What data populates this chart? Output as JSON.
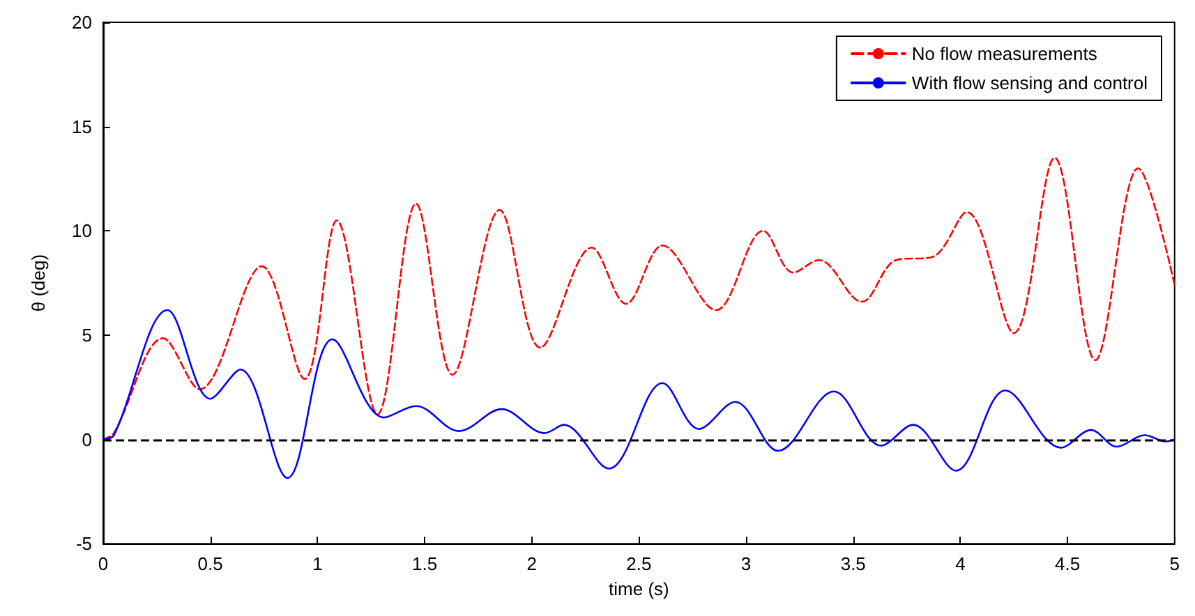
{
  "chart_data": {
    "type": "line",
    "xlabel": "time (s)",
    "ylabel": "θ (deg)",
    "xlim": [
      0,
      5
    ],
    "ylim": [
      -5,
      20
    ],
    "xticks": [
      0,
      0.5,
      1,
      1.5,
      2,
      2.5,
      3,
      3.5,
      4,
      4.5,
      5
    ],
    "yticks": [
      -5,
      0,
      5,
      10,
      15,
      20
    ],
    "grid": false,
    "legend": "top right",
    "marker": "none",
    "ref_lines": [
      {
        "axis": "y",
        "value": 0,
        "color": "#000000",
        "line_style": "dashed"
      }
    ],
    "series": [
      {
        "name": "No flow measurements",
        "color": "#ff0000",
        "line_style": "dashed",
        "x": [
          0,
          0.05,
          0.28,
          0.45,
          0.74,
          0.94,
          1.09,
          1.28,
          1.46,
          1.63,
          1.85,
          2.04,
          2.28,
          2.44,
          2.61,
          2.86,
          3.08,
          3.22,
          3.34,
          3.54,
          3.7,
          3.87,
          4.03,
          4.25,
          4.44,
          4.63,
          4.83,
          5
        ],
        "values": [
          0,
          0.3,
          4.85,
          2.4,
          8.3,
          2.9,
          10.5,
          1.2,
          11.3,
          3.1,
          11,
          4.4,
          9.2,
          6.5,
          9.3,
          6.2,
          10,
          8,
          8.6,
          6.6,
          8.6,
          8.75,
          10.9,
          5.1,
          13.5,
          3.8,
          13,
          7.4
        ]
      },
      {
        "name": "With flow sensing and control",
        "color": "#0000ff",
        "line_style": "solid",
        "x": [
          0,
          0.05,
          0.3,
          0.5,
          0.64,
          0.86,
          1.07,
          1.31,
          1.46,
          1.66,
          1.86,
          2.06,
          2.15,
          2.36,
          2.61,
          2.78,
          2.95,
          3.15,
          3.41,
          3.63,
          3.78,
          3.98,
          4.21,
          4.47,
          4.61,
          4.73,
          4.86,
          4.96,
          5
        ],
        "values": [
          0,
          0.2,
          6.2,
          1.95,
          3.35,
          -1.85,
          4.8,
          1.05,
          1.6,
          0.4,
          1.45,
          0.3,
          0.7,
          -1.4,
          2.7,
          0.5,
          1.8,
          -0.55,
          2.3,
          -0.3,
          0.7,
          -1.5,
          2.35,
          -0.4,
          0.45,
          -0.35,
          0.2,
          -0.1,
          0
        ]
      }
    ]
  }
}
